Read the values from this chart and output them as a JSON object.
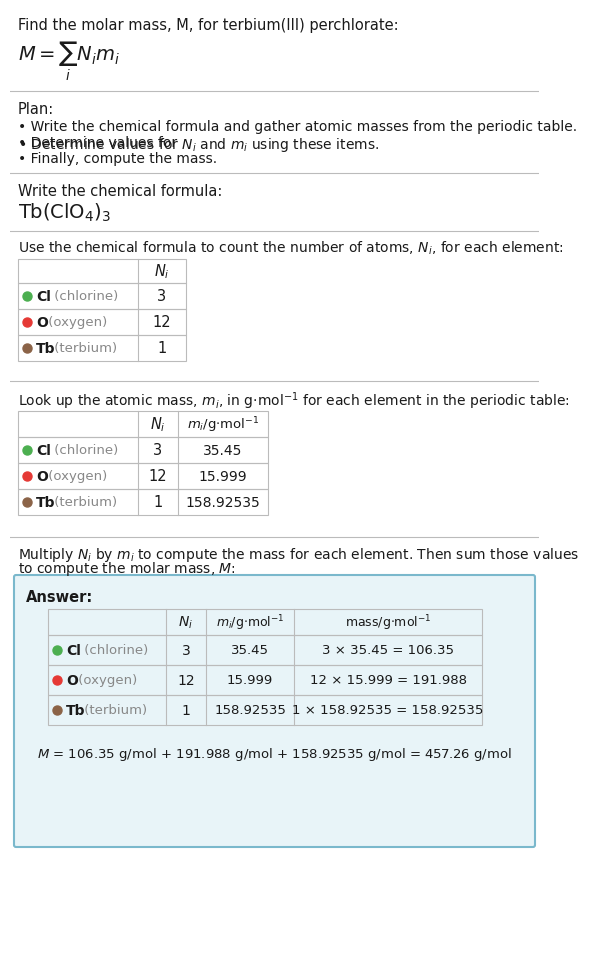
{
  "title_line": "Find the molar mass, M, for terbium(III) perchlorate:",
  "plan_header": "Plan:",
  "plan_bullets": [
    "• Write the chemical formula and gather atomic masses from the periodic table.",
    "• Determine values for N_i and m_i using these items.",
    "• Finally, compute the mass."
  ],
  "formula_section_header": "Write the chemical formula:",
  "count_header": "Use the chemical formula to count the number of atoms, N_i, for each element:",
  "lookup_header": "Look up the atomic mass, m_i, in g·mol⁻¹ for each element in the periodic table:",
  "multiply_header_l1": "Multiply N_i by m_i to compute the mass for each element. Then sum those values",
  "multiply_header_l2": "to compute the molar mass, M:",
  "elements": [
    "Cl (chlorine)",
    "O (oxygen)",
    "Tb (terbium)"
  ],
  "element_syms": [
    "Cl",
    "O",
    "Tb"
  ],
  "element_parens": [
    " (chlorine)",
    " (oxygen)",
    " (terbium)"
  ],
  "dot_colors": [
    "#4caf50",
    "#e53935",
    "#8B6347"
  ],
  "N_i": [
    "3",
    "12",
    "1"
  ],
  "m_i": [
    "35.45",
    "15.999",
    "158.92535"
  ],
  "mass_expr": [
    "3 × 35.45 = 106.35",
    "12 × 15.999 = 191.988",
    "1 × 158.92535 = 158.92535"
  ],
  "final_equation": "M = 106.35 g/mol + 191.988 g/mol + 158.92535 g/mol = 457.26 g/mol",
  "answer_bg": "#e8f4f8",
  "answer_border": "#7ab8cc",
  "bg_color": "#ffffff",
  "text_color": "#1a1a1a",
  "gray_color": "#888888",
  "table_border_color": "#bbbbbb",
  "divider_color": "#bbbbbb"
}
